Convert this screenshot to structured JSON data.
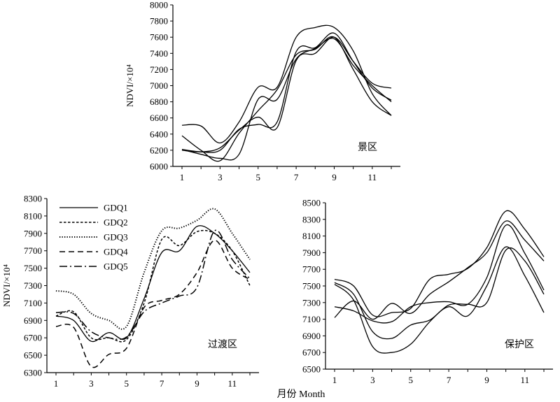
{
  "figure": {
    "xlabel": "月份 Month"
  },
  "chart_data": [
    {
      "type": "line",
      "region_label": "景区",
      "ylabel": "NDVI/×10⁴",
      "ylim": [
        6000,
        8000
      ],
      "yticks": [
        6000,
        6200,
        6400,
        6600,
        6800,
        7000,
        7200,
        7400,
        7600,
        7800,
        8000
      ],
      "xlim": [
        1,
        12
      ],
      "xticks": [
        1,
        3,
        5,
        7,
        9,
        11
      ],
      "legend": false,
      "x": [
        1,
        2,
        3,
        4,
        5,
        6,
        7,
        8,
        9,
        10,
        11,
        12
      ],
      "series": [
        {
          "style": "solid",
          "values": [
            6510,
            6500,
            6290,
            6550,
            6980,
            6980,
            7600,
            7720,
            7720,
            7430,
            6900,
            6630
          ]
        },
        {
          "style": "solid",
          "values": [
            6200,
            6180,
            6230,
            6450,
            6610,
            6480,
            7310,
            7400,
            7600,
            7300,
            7030,
            6970
          ]
        },
        {
          "style": "solid",
          "values": [
            6380,
            6200,
            6070,
            6410,
            6690,
            6950,
            7380,
            7450,
            7600,
            7200,
            6800,
            6630
          ]
        },
        {
          "style": "solid",
          "values": [
            6210,
            6180,
            6200,
            6460,
            6520,
            6550,
            7420,
            7470,
            7650,
            7300,
            6970,
            6820
          ]
        },
        {
          "style": "solid",
          "values": [
            6210,
            6150,
            6100,
            6150,
            6830,
            6830,
            7330,
            7460,
            7580,
            7250,
            7000,
            6800
          ]
        }
      ]
    },
    {
      "type": "line",
      "region_label": "过渡区",
      "ylabel": "NDVI/×10⁴",
      "ylim": [
        6300,
        8300
      ],
      "yticks": [
        6300,
        6500,
        6700,
        6900,
        7100,
        7300,
        7500,
        7700,
        7900,
        8100,
        8300
      ],
      "xlim": [
        1,
        12
      ],
      "xticks": [
        1,
        3,
        5,
        7,
        9,
        11
      ],
      "legend": true,
      "legend_position": "top-left",
      "x": [
        1,
        2,
        3,
        4,
        5,
        6,
        7,
        8,
        9,
        10,
        11,
        12
      ],
      "series": [
        {
          "name": "GDQ1",
          "style": "solid",
          "values": [
            6950,
            6900,
            6660,
            6760,
            6700,
            7150,
            7680,
            7700,
            7980,
            7900,
            7700,
            7450
          ]
        },
        {
          "name": "GDQ2",
          "style": "dense-dash",
          "values": [
            6950,
            7000,
            6700,
            6700,
            6680,
            7100,
            7830,
            7760,
            7920,
            7900,
            7700,
            7300
          ]
        },
        {
          "name": "GDQ3",
          "style": "dotted",
          "values": [
            7240,
            7200,
            6980,
            6900,
            6830,
            7450,
            7930,
            7960,
            8050,
            8180,
            7900,
            7600
          ]
        },
        {
          "name": "GDQ4",
          "style": "dash",
          "values": [
            6830,
            6820,
            6370,
            6510,
            6580,
            7050,
            7130,
            7200,
            7450,
            7820,
            7500,
            7370
          ]
        },
        {
          "name": "GDQ5",
          "style": "dash-dot",
          "values": [
            6990,
            6980,
            6770,
            6700,
            6710,
            7000,
            7100,
            7180,
            7280,
            7930,
            7600,
            7380
          ]
        }
      ]
    },
    {
      "type": "line",
      "region_label": "保护区",
      "ylabel": "",
      "ylim": [
        6500,
        8500
      ],
      "yticks": [
        6500,
        6700,
        6900,
        7100,
        7300,
        7500,
        7700,
        7900,
        8100,
        8300,
        8500
      ],
      "xlim": [
        1,
        12
      ],
      "xticks": [
        1,
        3,
        5,
        7,
        9,
        11
      ],
      "legend": false,
      "x": [
        1,
        2,
        3,
        4,
        5,
        6,
        7,
        8,
        9,
        10,
        11,
        12
      ],
      "series": [
        {
          "style": "solid",
          "values": [
            7580,
            7500,
            7150,
            7180,
            7230,
            7580,
            7640,
            7710,
            7960,
            8400,
            8180,
            7850
          ]
        },
        {
          "style": "solid",
          "values": [
            7120,
            7320,
            7100,
            7290,
            7170,
            7400,
            7550,
            7720,
            7900,
            8280,
            8050,
            7800
          ]
        },
        {
          "style": "solid",
          "values": [
            7540,
            7400,
            6950,
            6870,
            7030,
            7090,
            7270,
            7280,
            7300,
            7930,
            7800,
            7400
          ]
        },
        {
          "style": "solid",
          "values": [
            7520,
            7330,
            6770,
            6700,
            6800,
            7070,
            7250,
            7140,
            7500,
            7970,
            7620,
            7180
          ]
        },
        {
          "style": "solid",
          "values": [
            7250,
            7200,
            7080,
            7070,
            7250,
            7300,
            7310,
            7280,
            7600,
            8230,
            7890,
            7450
          ]
        }
      ]
    }
  ]
}
